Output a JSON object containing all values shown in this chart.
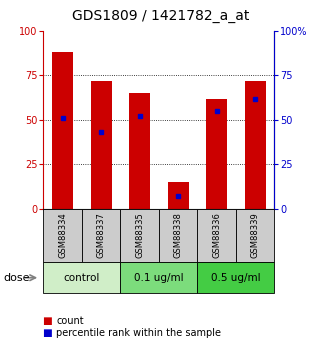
{
  "title": "GDS1809 / 1421782_a_at",
  "samples": [
    "GSM88334",
    "GSM88337",
    "GSM88335",
    "GSM88338",
    "GSM88336",
    "GSM88339"
  ],
  "red_values": [
    88,
    72,
    65,
    15,
    62,
    72
  ],
  "blue_values": [
    51,
    43,
    52,
    7,
    55,
    62
  ],
  "groups": [
    {
      "label": "control",
      "indices": [
        0,
        1
      ],
      "color": "#d0eec8"
    },
    {
      "label": "0.1 ug/ml",
      "indices": [
        2,
        3
      ],
      "color": "#7cdc7c"
    },
    {
      "label": "0.5 ug/ml",
      "indices": [
        4,
        5
      ],
      "color": "#44cc44"
    }
  ],
  "ylim": [
    0,
    100
  ],
  "yticks": [
    0,
    25,
    50,
    75,
    100
  ],
  "bar_width": 0.55,
  "bar_color": "#cc0000",
  "dot_color": "#0000cc",
  "left_axis_color": "#cc0000",
  "right_axis_color": "#0000cc",
  "title_fontsize": 10,
  "tick_fontsize": 7,
  "label_fontsize": 7,
  "group_label_fontsize": 7.5,
  "dose_fontsize": 8,
  "legend_fontsize": 7,
  "sample_fontsize": 6,
  "sample_bg_color": "#cccccc",
  "grid_color": "black",
  "background_color": "#ffffff"
}
